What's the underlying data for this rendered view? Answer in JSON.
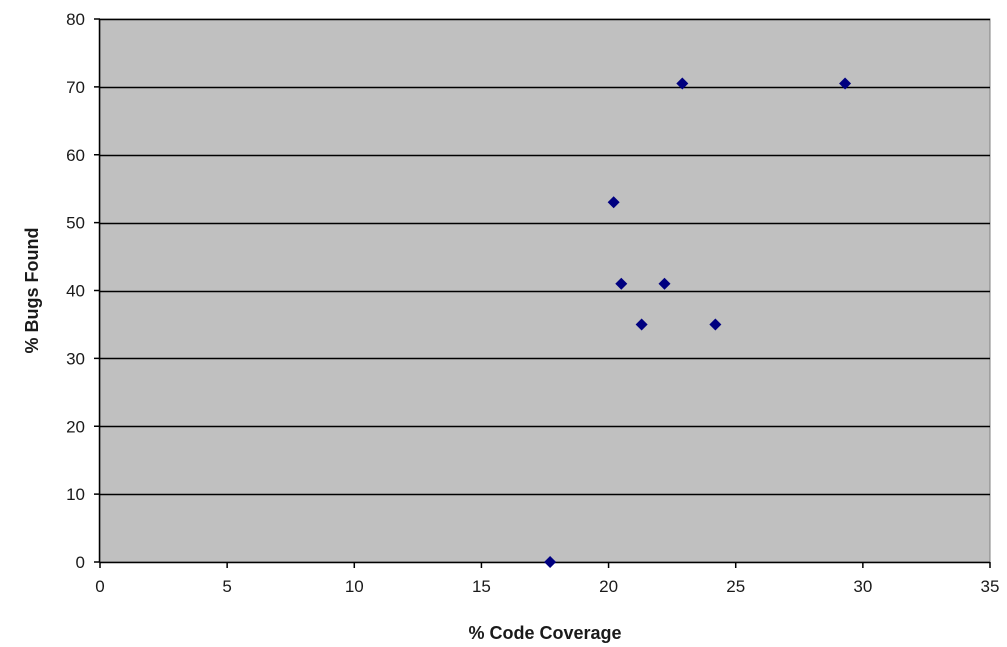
{
  "chart_data": {
    "type": "scatter",
    "title": "",
    "xlabel": "% Code Coverage",
    "ylabel": "% Bugs Found",
    "xlim": [
      0,
      35
    ],
    "ylim": [
      0,
      80
    ],
    "x_ticks": [
      0,
      5,
      10,
      15,
      20,
      25,
      30,
      35
    ],
    "y_ticks": [
      0,
      10,
      20,
      30,
      40,
      50,
      60,
      70,
      80
    ],
    "grid": "horizontal",
    "legend": "none",
    "plot_background": "#c0c0c0",
    "gridline_color": "#000000",
    "marker_color": "#000080",
    "marker": "diamond",
    "series": [
      {
        "points": [
          {
            "x": 17.7,
            "y": 0
          },
          {
            "x": 20.2,
            "y": 53
          },
          {
            "x": 20.5,
            "y": 41
          },
          {
            "x": 21.3,
            "y": 35
          },
          {
            "x": 22.2,
            "y": 41
          },
          {
            "x": 22.9,
            "y": 70.5
          },
          {
            "x": 24.2,
            "y": 35
          },
          {
            "x": 29.3,
            "y": 70.5
          }
        ]
      }
    ]
  }
}
